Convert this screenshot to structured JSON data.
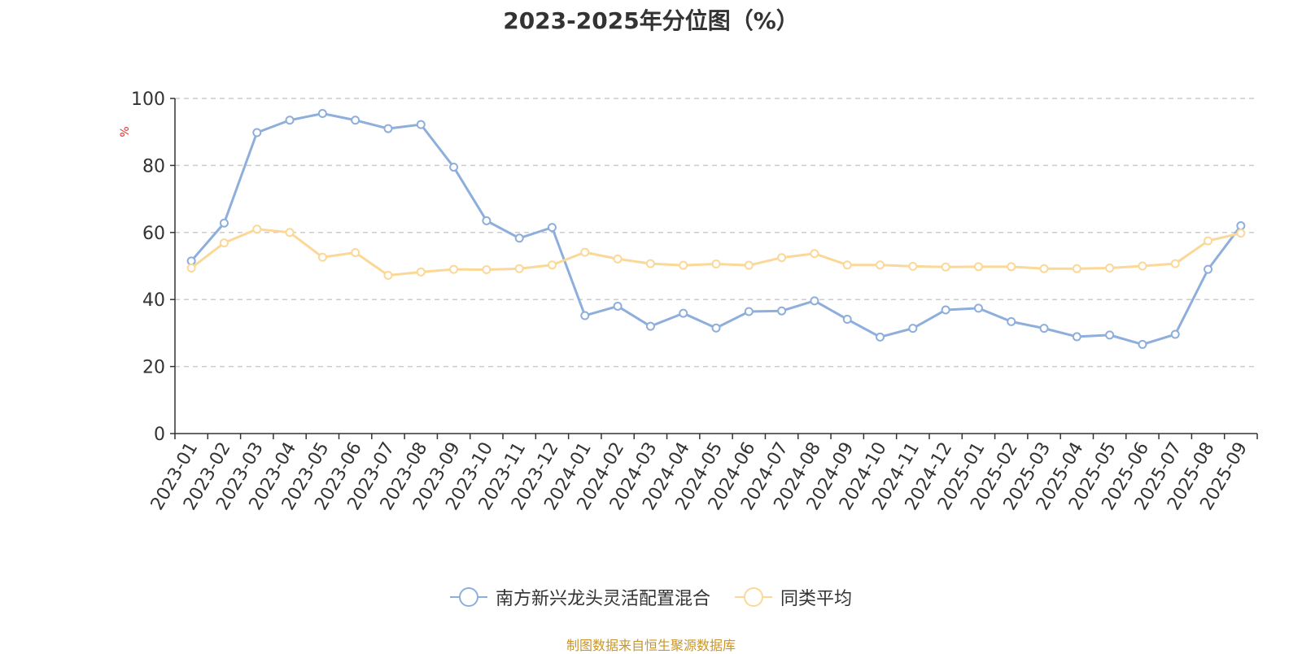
{
  "chart_data": {
    "type": "line",
    "title": "2023-2025年分位图（%）",
    "ylabel": "%",
    "xlabel": "",
    "ylim": [
      0,
      100
    ],
    "yticks": [
      0,
      20,
      40,
      60,
      80,
      100
    ],
    "grid": true,
    "legend_position": "bottom",
    "categories": [
      "2023-01",
      "2023-02",
      "2023-03",
      "2023-04",
      "2023-05",
      "2023-06",
      "2023-07",
      "2023-08",
      "2023-09",
      "2023-10",
      "2023-11",
      "2023-12",
      "2024-01",
      "2024-02",
      "2024-03",
      "2024-04",
      "2024-05",
      "2024-06",
      "2024-07",
      "2024-08",
      "2024-09",
      "2024-10",
      "2024-11",
      "2024-12",
      "2025-01",
      "2025-02",
      "2025-03",
      "2025-04",
      "2025-05",
      "2025-06",
      "2025-07",
      "2025-08",
      "2025-09"
    ],
    "series": [
      {
        "name": "南方新兴龙头灵活配置混合",
        "color": "#8eaedb",
        "values": [
          51.5,
          62.8,
          89.8,
          93.5,
          95.5,
          93.5,
          91.0,
          92.2,
          79.5,
          63.5,
          58.3,
          61.5,
          35.2,
          38.0,
          32.0,
          35.9,
          31.5,
          36.4,
          36.6,
          39.6,
          34.1,
          28.8,
          31.4,
          36.9,
          37.4,
          33.4,
          31.4,
          28.9,
          29.4,
          26.6,
          29.6,
          49.0,
          62.0
        ]
      },
      {
        "name": "同类平均",
        "color": "#fbd898",
        "values": [
          49.4,
          56.9,
          61.0,
          60.0,
          52.6,
          54.0,
          47.2,
          48.2,
          49.0,
          48.9,
          49.2,
          50.3,
          54.1,
          52.1,
          50.7,
          50.2,
          50.6,
          50.2,
          52.5,
          53.7,
          50.3,
          50.3,
          49.9,
          49.7,
          49.8,
          49.8,
          49.2,
          49.2,
          49.4,
          50.0,
          50.7,
          57.5,
          59.8
        ]
      }
    ]
  },
  "footer": {
    "source": "制图数据来自恒生聚源数据库"
  }
}
